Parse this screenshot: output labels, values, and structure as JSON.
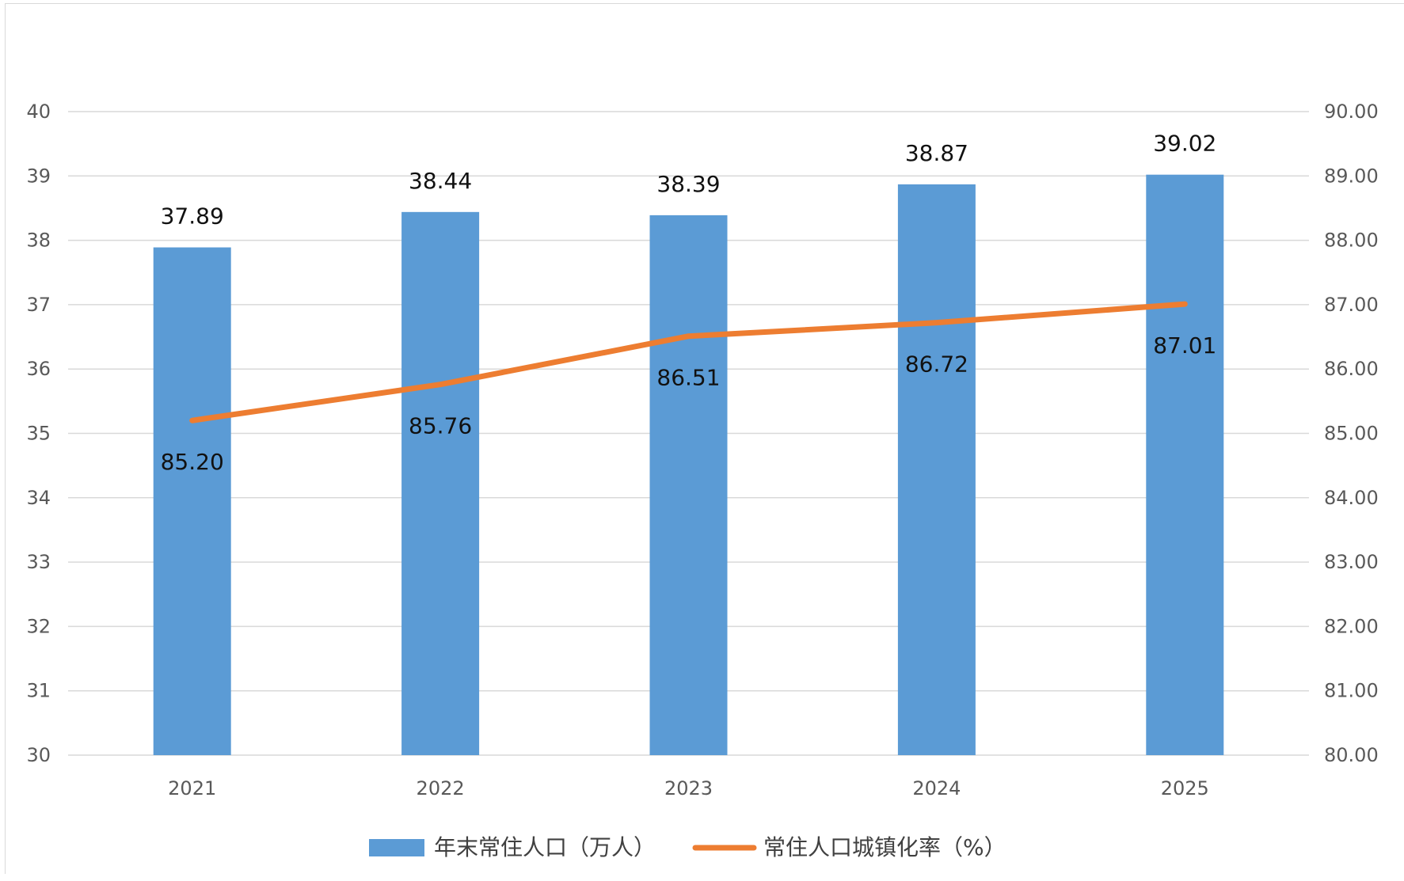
{
  "chart_data": {
    "type": "bar",
    "categories": [
      "2021",
      "2022",
      "2023",
      "2024",
      "2025"
    ],
    "series": [
      {
        "name": "年末常住人口（万人）",
        "type": "bar",
        "axis": "left",
        "color": "#5b9bd5",
        "values": [
          37.89,
          38.44,
          38.39,
          38.87,
          39.02
        ],
        "labels": [
          "37.89",
          "38.44",
          "38.39",
          "38.87",
          "39.02"
        ]
      },
      {
        "name": "常住人口城镇化率（%）",
        "type": "line",
        "axis": "right",
        "color": "#ed7d31",
        "values": [
          85.2,
          85.76,
          86.51,
          86.72,
          87.01
        ],
        "labels": [
          "85.20",
          "85.76",
          "86.51",
          "86.72",
          "87.01"
        ]
      }
    ],
    "y_left": {
      "min": 30,
      "max": 40,
      "ticks": [
        "30",
        "31",
        "32",
        "33",
        "34",
        "35",
        "36",
        "37",
        "38",
        "39",
        "40"
      ]
    },
    "y_right": {
      "min": 80,
      "max": 90,
      "ticks": [
        "80.00",
        "81.00",
        "82.00",
        "83.00",
        "84.00",
        "85.00",
        "86.00",
        "87.00",
        "88.00",
        "89.00",
        "90.00"
      ]
    },
    "grid": true,
    "legend_position": "bottom",
    "gridline_color": "#d9d9d9"
  }
}
